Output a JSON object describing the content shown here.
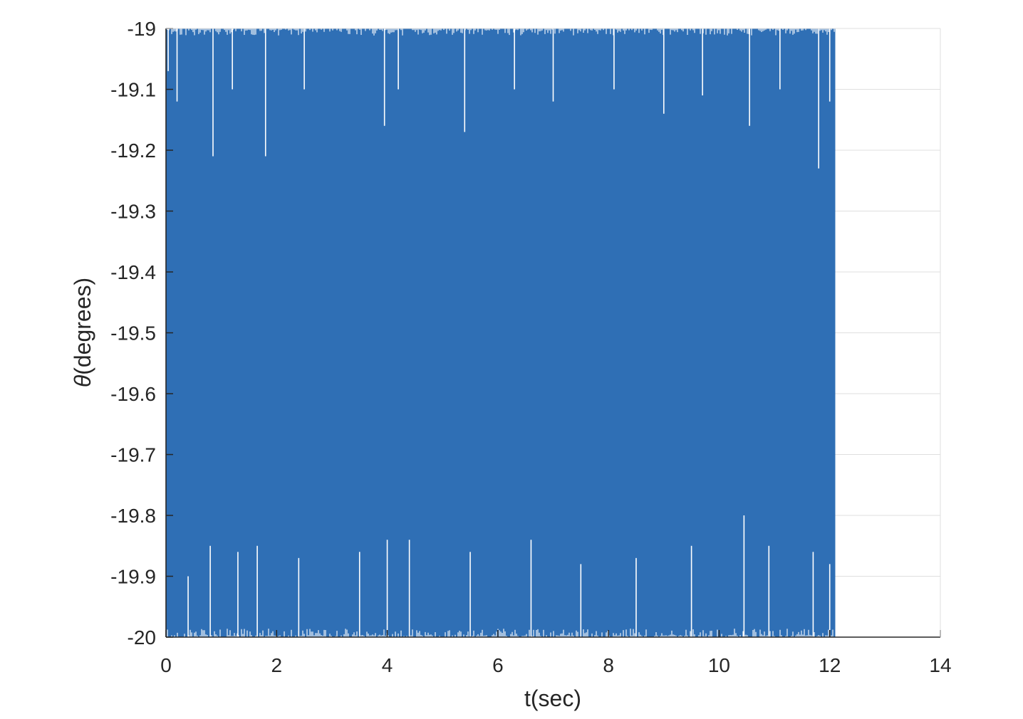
{
  "chart_data": {
    "type": "line",
    "title": "",
    "xlabel": "t(sec)",
    "ylabel_symbol": "θ",
    "ylabel_text": "(degrees)",
    "xlim": [
      0,
      14
    ],
    "ylim": [
      -20,
      -19
    ],
    "x_ticks": [
      "0",
      "2",
      "4",
      "6",
      "8",
      "10",
      "12",
      "14"
    ],
    "y_ticks": [
      "-19",
      "-19.1",
      "-19.2",
      "-19.3",
      "-19.4",
      "-19.5",
      "-19.6",
      "-19.7",
      "-19.8",
      "-19.9",
      "-20"
    ],
    "grid": true,
    "legend": "none",
    "series": [
      {
        "color": "#2f6fb5",
        "x_range": [
          0,
          12.1
        ],
        "y_envelope": [
          -20,
          -19
        ],
        "description_values": {
          "lower_spikes": [
            {
              "x": 0.04,
              "y": -19.07
            },
            {
              "x": 0.2,
              "y": -19.12
            },
            {
              "x": 0.85,
              "y": -19.21
            },
            {
              "x": 1.2,
              "y": -19.1
            },
            {
              "x": 1.8,
              "y": -19.21
            },
            {
              "x": 2.5,
              "y": -19.1
            },
            {
              "x": 3.95,
              "y": -19.16
            },
            {
              "x": 4.2,
              "y": -19.1
            },
            {
              "x": 5.4,
              "y": -19.17
            },
            {
              "x": 6.3,
              "y": -19.1
            },
            {
              "x": 7.0,
              "y": -19.12
            },
            {
              "x": 8.1,
              "y": -19.1
            },
            {
              "x": 9.0,
              "y": -19.14
            },
            {
              "x": 9.7,
              "y": -19.11
            },
            {
              "x": 10.55,
              "y": -19.16
            },
            {
              "x": 11.1,
              "y": -19.1
            },
            {
              "x": 11.8,
              "y": -19.23
            },
            {
              "x": 12.0,
              "y": -19.12
            }
          ],
          "upper_spikes": [
            {
              "x": 0.4,
              "y": -19.9
            },
            {
              "x": 0.8,
              "y": -19.85
            },
            {
              "x": 1.3,
              "y": -19.86
            },
            {
              "x": 1.65,
              "y": -19.85
            },
            {
              "x": 2.4,
              "y": -19.87
            },
            {
              "x": 3.5,
              "y": -19.86
            },
            {
              "x": 4.0,
              "y": -19.84
            },
            {
              "x": 4.4,
              "y": -19.84
            },
            {
              "x": 5.5,
              "y": -19.86
            },
            {
              "x": 6.6,
              "y": -19.84
            },
            {
              "x": 7.5,
              "y": -19.88
            },
            {
              "x": 8.5,
              "y": -19.87
            },
            {
              "x": 9.5,
              "y": -19.85
            },
            {
              "x": 10.45,
              "y": -19.8
            },
            {
              "x": 10.9,
              "y": -19.85
            },
            {
              "x": 11.7,
              "y": -19.86
            },
            {
              "x": 12.0,
              "y": -19.88
            }
          ]
        }
      }
    ]
  }
}
